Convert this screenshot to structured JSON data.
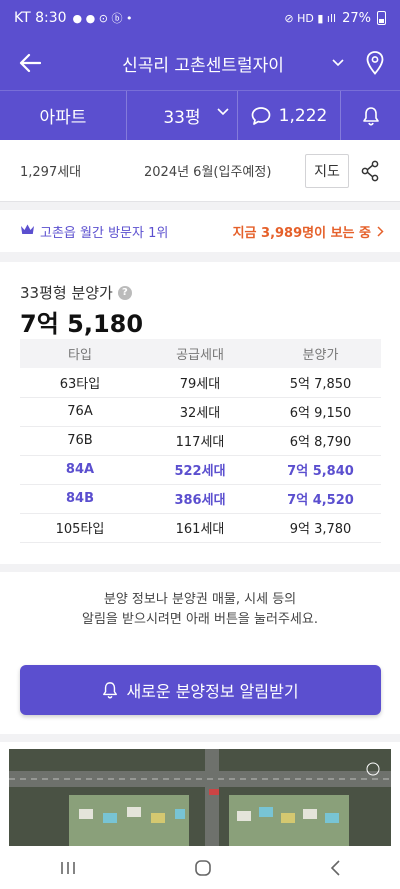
{
  "status_bar": {
    "carrier_time": "KT 8:30",
    "battery": "27%"
  },
  "header": {
    "title": "신곡리 고촌센트럴자이"
  },
  "subbar": {
    "property_type": "아파트",
    "size": "33평",
    "comment_count": "1,222"
  },
  "info": {
    "households": "1,297세대",
    "move_in": "2024년 6월(입주예정)",
    "map_label": "지도"
  },
  "rank": {
    "text": "고촌읍 월간 방문자 1위",
    "viewers": "지금 3,989명이 보는 중"
  },
  "price": {
    "label": "33평형 분양가",
    "amount": "7억 5,180",
    "columns": [
      "타입",
      "공급세대",
      "분양가"
    ],
    "rows": [
      {
        "type": "63타입",
        "units": "79세대",
        "price": "5억 7,850",
        "highlight": false
      },
      {
        "type": "76A",
        "units": "32세대",
        "price": "6억 9,150",
        "highlight": false
      },
      {
        "type": "76B",
        "units": "117세대",
        "price": "6억 8,790",
        "highlight": false
      },
      {
        "type": "84A",
        "units": "522세대",
        "price": "7억 5,840",
        "highlight": true
      },
      {
        "type": "84B",
        "units": "386세대",
        "price": "7억 4,520",
        "highlight": true
      },
      {
        "type": "105타입",
        "units": "161세대",
        "price": "9억 3,780",
        "highlight": false
      }
    ]
  },
  "notice": {
    "line1": "분양 정보나 분양권 매물, 시세 등의",
    "line2": "알림을 받으시려면 아래 버튼을 눌러주세요.",
    "button": "새로운 분양정보 알림받기"
  },
  "colors": {
    "brand": "#5b4fcf",
    "highlight": "#e5602a"
  },
  "icons": [
    "back-arrow-icon",
    "chevron-down-icon",
    "location-pin-icon",
    "comment-icon",
    "bell-icon",
    "share-icon",
    "crown-icon",
    "chevron-right-icon",
    "question-icon",
    "nav-recent-icon",
    "nav-home-icon",
    "nav-back-icon"
  ]
}
